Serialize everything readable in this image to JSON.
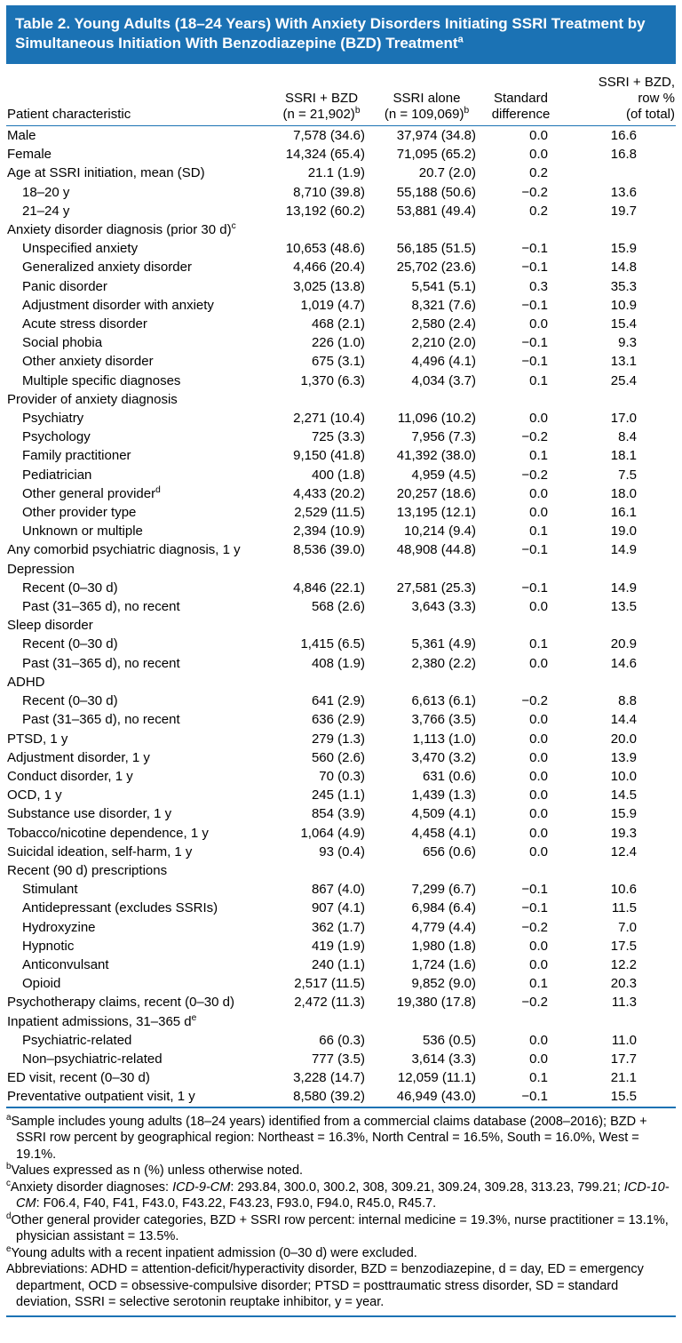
{
  "colors": {
    "header_blue": "#1b72b4"
  },
  "title": {
    "text": "Table 2. Young Adults (18–24 Years) With Anxiety Disorders Initiating SSRI Treatment by Simultaneous Initiation With Benzodiazepine (BZD) Treatment",
    "sup": "a"
  },
  "table": {
    "columns": {
      "characteristic": "Patient characteristic",
      "ssri_bzd": {
        "line1": "SSRI + BZD",
        "line2": "(n = 21,902)",
        "sup": "b"
      },
      "ssri_alone": {
        "line1": "SSRI alone",
        "line2": "(n = 109,069)",
        "sup": "b"
      },
      "std_diff": {
        "line1": "Standard",
        "line2": "difference"
      },
      "row_pct": {
        "line1": "SSRI + BZD,",
        "line2": "row %",
        "line3": "(of total)"
      }
    },
    "rows": [
      {
        "label": "Male",
        "indent": false,
        "c2": "7,578 (34.6)",
        "c3": "37,974 (34.8)",
        "c4": "0.0",
        "c5": "16.6"
      },
      {
        "label": "Female",
        "indent": false,
        "c2": "14,324 (65.4)",
        "c3": "71,095 (65.2)",
        "c4": "0.0",
        "c5": "16.8"
      },
      {
        "label": "Age at SSRI initiation, mean (SD)",
        "indent": false,
        "c2": "21.1 (1.9)",
        "c3": "20.7 (2.0)",
        "c4": "0.2",
        "c5": ""
      },
      {
        "label": "18–20 y",
        "indent": true,
        "c2": "8,710 (39.8)",
        "c3": "55,188 (50.6)",
        "c4": "−0.2",
        "c5": "13.6"
      },
      {
        "label": "21–24 y",
        "indent": true,
        "c2": "13,192 (60.2)",
        "c3": "53,881 (49.4)",
        "c4": "0.2",
        "c5": "19.7"
      },
      {
        "label": "Anxiety disorder diagnosis (prior 30 d)",
        "sup": "c",
        "indent": false,
        "c2": "",
        "c3": "",
        "c4": "",
        "c5": ""
      },
      {
        "label": "Unspecified anxiety",
        "indent": true,
        "c2": "10,653 (48.6)",
        "c3": "56,185 (51.5)",
        "c4": "−0.1",
        "c5": "15.9"
      },
      {
        "label": "Generalized anxiety disorder",
        "indent": true,
        "c2": "4,466 (20.4)",
        "c3": "25,702 (23.6)",
        "c4": "−0.1",
        "c5": "14.8"
      },
      {
        "label": "Panic disorder",
        "indent": true,
        "c2": "3,025 (13.8)",
        "c3": "5,541 (5.1)",
        "c4": "0.3",
        "c5": "35.3"
      },
      {
        "label": "Adjustment disorder with anxiety",
        "indent": true,
        "c2": "1,019 (4.7)",
        "c3": "8,321 (7.6)",
        "c4": "−0.1",
        "c5": "10.9"
      },
      {
        "label": "Acute stress disorder",
        "indent": true,
        "c2": "468 (2.1)",
        "c3": "2,580 (2.4)",
        "c4": "0.0",
        "c5": "15.4"
      },
      {
        "label": "Social phobia",
        "indent": true,
        "c2": "226 (1.0)",
        "c3": "2,210 (2.0)",
        "c4": "−0.1",
        "c5": "9.3"
      },
      {
        "label": "Other anxiety disorder",
        "indent": true,
        "c2": "675 (3.1)",
        "c3": "4,496 (4.1)",
        "c4": "−0.1",
        "c5": "13.1"
      },
      {
        "label": "Multiple specific diagnoses",
        "indent": true,
        "c2": "1,370 (6.3)",
        "c3": "4,034 (3.7)",
        "c4": "0.1",
        "c5": "25.4"
      },
      {
        "label": "Provider of anxiety diagnosis",
        "indent": false,
        "c2": "",
        "c3": "",
        "c4": "",
        "c5": ""
      },
      {
        "label": "Psychiatry",
        "indent": true,
        "c2": "2,271 (10.4)",
        "c3": "11,096 (10.2)",
        "c4": "0.0",
        "c5": "17.0"
      },
      {
        "label": "Psychology",
        "indent": true,
        "c2": "725 (3.3)",
        "c3": "7,956 (7.3)",
        "c4": "−0.2",
        "c5": "8.4"
      },
      {
        "label": "Family practitioner",
        "indent": true,
        "c2": "9,150 (41.8)",
        "c3": "41,392 (38.0)",
        "c4": "0.1",
        "c5": "18.1"
      },
      {
        "label": "Pediatrician",
        "indent": true,
        "c2": "400 (1.8)",
        "c3": "4,959 (4.5)",
        "c4": "−0.2",
        "c5": "7.5"
      },
      {
        "label": "Other general provider",
        "sup": "d",
        "indent": true,
        "c2": "4,433 (20.2)",
        "c3": "20,257 (18.6)",
        "c4": "0.0",
        "c5": "18.0"
      },
      {
        "label": "Other provider type",
        "indent": true,
        "c2": "2,529 (11.5)",
        "c3": "13,195 (12.1)",
        "c4": "0.0",
        "c5": "16.1"
      },
      {
        "label": "Unknown or multiple",
        "indent": true,
        "c2": "2,394 (10.9)",
        "c3": "10,214 (9.4)",
        "c4": "0.1",
        "c5": "19.0"
      },
      {
        "label": "Any comorbid psychiatric diagnosis, 1 y",
        "indent": false,
        "c2": "8,536 (39.0)",
        "c3": "48,908 (44.8)",
        "c4": "−0.1",
        "c5": "14.9"
      },
      {
        "label": "Depression",
        "indent": false,
        "c2": "",
        "c3": "",
        "c4": "",
        "c5": ""
      },
      {
        "label": "Recent (0–30 d)",
        "indent": true,
        "c2": "4,846 (22.1)",
        "c3": "27,581 (25.3)",
        "c4": "−0.1",
        "c5": "14.9"
      },
      {
        "label": "Past (31–365 d), no recent",
        "indent": true,
        "c2": "568 (2.6)",
        "c3": "3,643 (3.3)",
        "c4": "0.0",
        "c5": "13.5"
      },
      {
        "label": "Sleep disorder",
        "indent": false,
        "c2": "",
        "c3": "",
        "c4": "",
        "c5": ""
      },
      {
        "label": "Recent (0–30 d)",
        "indent": true,
        "c2": "1,415 (6.5)",
        "c3": "5,361 (4.9)",
        "c4": "0.1",
        "c5": "20.9"
      },
      {
        "label": "Past (31–365 d), no recent",
        "indent": true,
        "c2": "408 (1.9)",
        "c3": "2,380 (2.2)",
        "c4": "0.0",
        "c5": "14.6"
      },
      {
        "label": "ADHD",
        "indent": false,
        "c2": "",
        "c3": "",
        "c4": "",
        "c5": ""
      },
      {
        "label": "Recent (0–30 d)",
        "indent": true,
        "c2": "641 (2.9)",
        "c3": "6,613 (6.1)",
        "c4": "−0.2",
        "c5": "8.8"
      },
      {
        "label": "Past (31–365 d), no recent",
        "indent": true,
        "c2": "636 (2.9)",
        "c3": "3,766 (3.5)",
        "c4": "0.0",
        "c5": "14.4"
      },
      {
        "label": "PTSD, 1 y",
        "indent": false,
        "c2": "279 (1.3)",
        "c3": "1,113 (1.0)",
        "c4": "0.0",
        "c5": "20.0"
      },
      {
        "label": "Adjustment disorder, 1 y",
        "indent": false,
        "c2": "560 (2.6)",
        "c3": "3,470 (3.2)",
        "c4": "0.0",
        "c5": "13.9"
      },
      {
        "label": "Conduct disorder, 1 y",
        "indent": false,
        "c2": "70 (0.3)",
        "c3": "631 (0.6)",
        "c4": "0.0",
        "c5": "10.0"
      },
      {
        "label": "OCD, 1 y",
        "indent": false,
        "c2": "245 (1.1)",
        "c3": "1,439 (1.3)",
        "c4": "0.0",
        "c5": "14.5"
      },
      {
        "label": "Substance use disorder, 1 y",
        "indent": false,
        "c2": "854 (3.9)",
        "c3": "4,509 (4.1)",
        "c4": "0.0",
        "c5": "15.9"
      },
      {
        "label": "Tobacco/nicotine dependence, 1 y",
        "indent": false,
        "c2": "1,064 (4.9)",
        "c3": "4,458 (4.1)",
        "c4": "0.0",
        "c5": "19.3"
      },
      {
        "label": "Suicidal ideation, self-harm, 1 y",
        "indent": false,
        "c2": "93 (0.4)",
        "c3": "656 (0.6)",
        "c4": "0.0",
        "c5": "12.4"
      },
      {
        "label": "Recent (90 d) prescriptions",
        "indent": false,
        "c2": "",
        "c3": "",
        "c4": "",
        "c5": ""
      },
      {
        "label": "Stimulant",
        "indent": true,
        "c2": "867 (4.0)",
        "c3": "7,299 (6.7)",
        "c4": "−0.1",
        "c5": "10.6"
      },
      {
        "label": "Antidepressant (excludes SSRIs)",
        "indent": true,
        "c2": "907 (4.1)",
        "c3": "6,984 (6.4)",
        "c4": "−0.1",
        "c5": "11.5"
      },
      {
        "label": "Hydroxyzine",
        "indent": true,
        "c2": "362 (1.7)",
        "c3": "4,779 (4.4)",
        "c4": "−0.2",
        "c5": "7.0"
      },
      {
        "label": "Hypnotic",
        "indent": true,
        "c2": "419 (1.9)",
        "c3": "1,980 (1.8)",
        "c4": "0.0",
        "c5": "17.5"
      },
      {
        "label": "Anticonvulsant",
        "indent": true,
        "c2": "240 (1.1)",
        "c3": "1,724 (1.6)",
        "c4": "0.0",
        "c5": "12.2"
      },
      {
        "label": "Opioid",
        "indent": true,
        "c2": "2,517 (11.5)",
        "c3": "9,852 (9.0)",
        "c4": "0.1",
        "c5": "20.3"
      },
      {
        "label": "Psychotherapy claims, recent (0–30 d)",
        "indent": false,
        "c2": "2,472 (11.3)",
        "c3": "19,380 (17.8)",
        "c4": "−0.2",
        "c5": "11.3"
      },
      {
        "label": "Inpatient admissions, 31–365 d",
        "sup": "e",
        "indent": false,
        "c2": "",
        "c3": "",
        "c4": "",
        "c5": ""
      },
      {
        "label": "Psychiatric-related",
        "indent": true,
        "c2": "66 (0.3)",
        "c3": "536 (0.5)",
        "c4": "0.0",
        "c5": "11.0"
      },
      {
        "label": "Non–psychiatric-related",
        "indent": true,
        "c2": "777 (3.5)",
        "c3": "3,614 (3.3)",
        "c4": "0.0",
        "c5": "17.7"
      },
      {
        "label": "ED visit, recent (0–30 d)",
        "indent": false,
        "c2": "3,228 (14.7)",
        "c3": "12,059 (11.1)",
        "c4": "0.1",
        "c5": "21.1"
      },
      {
        "label": "Preventative outpatient visit, 1 y",
        "indent": false,
        "c2": "8,580 (39.2)",
        "c3": "46,949 (43.0)",
        "c4": "−0.1",
        "c5": "15.5"
      }
    ]
  },
  "footnotes": [
    {
      "sup": "a",
      "parts": [
        {
          "text": "Sample includes young adults (18–24 years) identified from a commercial claims database (2008–2016); BZD + SSRI row percent by geographical region: Northeast = 16.3%, North Central = 16.5%, South = 16.0%, West = 19.1%."
        }
      ]
    },
    {
      "sup": "b",
      "parts": [
        {
          "text": "Values expressed as n (%) unless otherwise noted."
        }
      ]
    },
    {
      "sup": "c",
      "parts": [
        {
          "text": "Anxiety disorder diagnoses: "
        },
        {
          "text": "ICD-9-CM",
          "italic": true
        },
        {
          "text": ": 293.84, 300.0, 300.2, 308, 309.21, 309.24, 309.28, 313.23, 799.21; "
        },
        {
          "text": "ICD-10-CM",
          "italic": true
        },
        {
          "text": ": F06.4, F40, F41, F43.0, F43.22, F43.23, F93.0, F94.0, R45.0, R45.7."
        }
      ]
    },
    {
      "sup": "d",
      "parts": [
        {
          "text": "Other general provider categories, BZD + SSRI row percent: internal medicine = 19.3%, nurse practitioner = 13.1%, physician assistant = 13.5%."
        }
      ]
    },
    {
      "sup": "e",
      "parts": [
        {
          "text": "Young adults with a recent inpatient admission (0–30 d) were excluded."
        }
      ]
    },
    {
      "parts": [
        {
          "text": "Abbreviations: ADHD = attention-deficit/hyperactivity disorder, BZD = benzodiazepine, d = day, ED = emergency department, OCD = obsessive-compulsive disorder; PTSD = posttraumatic stress disorder, SD = standard deviation, SSRI = selective serotonin reuptake inhibitor, y = year."
        }
      ]
    }
  ]
}
